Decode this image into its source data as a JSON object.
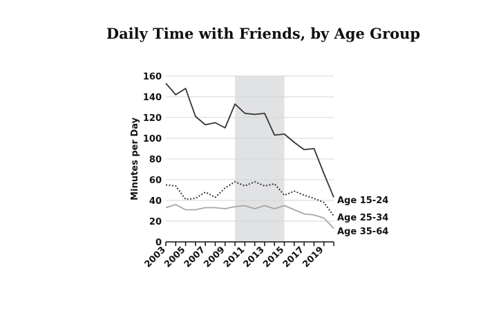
{
  "chart_data": {
    "type": "line",
    "title": "Daily Time with Friends, by Age Group",
    "xlabel": "",
    "ylabel": "Minutes per Day",
    "x": [
      2003,
      2004,
      2005,
      2006,
      2007,
      2008,
      2009,
      2010,
      2011,
      2012,
      2013,
      2014,
      2015,
      2016,
      2017,
      2018,
      2019,
      2020
    ],
    "xlim": [
      2003,
      2020
    ],
    "ylim": [
      0,
      160
    ],
    "xticks": [
      "2003",
      "2005",
      "2007",
      "2009",
      "2011",
      "2013",
      "2015",
      "2017",
      "2019"
    ],
    "yticks": [
      "0",
      "20",
      "40",
      "60",
      "80",
      "100",
      "120",
      "140",
      "160"
    ],
    "grid": true,
    "shaded_region": [
      2010,
      2015
    ],
    "series": [
      {
        "name": "Age 15-24",
        "style": "solid",
        "color": "#333333",
        "values": [
          153,
          142,
          148,
          121,
          113,
          115,
          110,
          133,
          124,
          123,
          124,
          103,
          104,
          96,
          89,
          90,
          66,
          43
        ]
      },
      {
        "name": "Age 25-34",
        "style": "dotted",
        "color": "#333333",
        "values": [
          55,
          54,
          41,
          42,
          48,
          43,
          52,
          58,
          54,
          58,
          54,
          56,
          45,
          49,
          45,
          42,
          38,
          25
        ]
      },
      {
        "name": "Age 35-64",
        "style": "solid",
        "color": "#a6a6a6",
        "values": [
          33,
          36,
          31,
          31,
          33,
          33,
          32,
          34,
          35,
          32,
          35,
          32,
          35,
          31,
          27,
          26,
          23,
          13
        ]
      }
    ]
  },
  "colors": {
    "shade": "#e1e2e4",
    "grid": "#d4d4d4",
    "axis": "#111111"
  }
}
